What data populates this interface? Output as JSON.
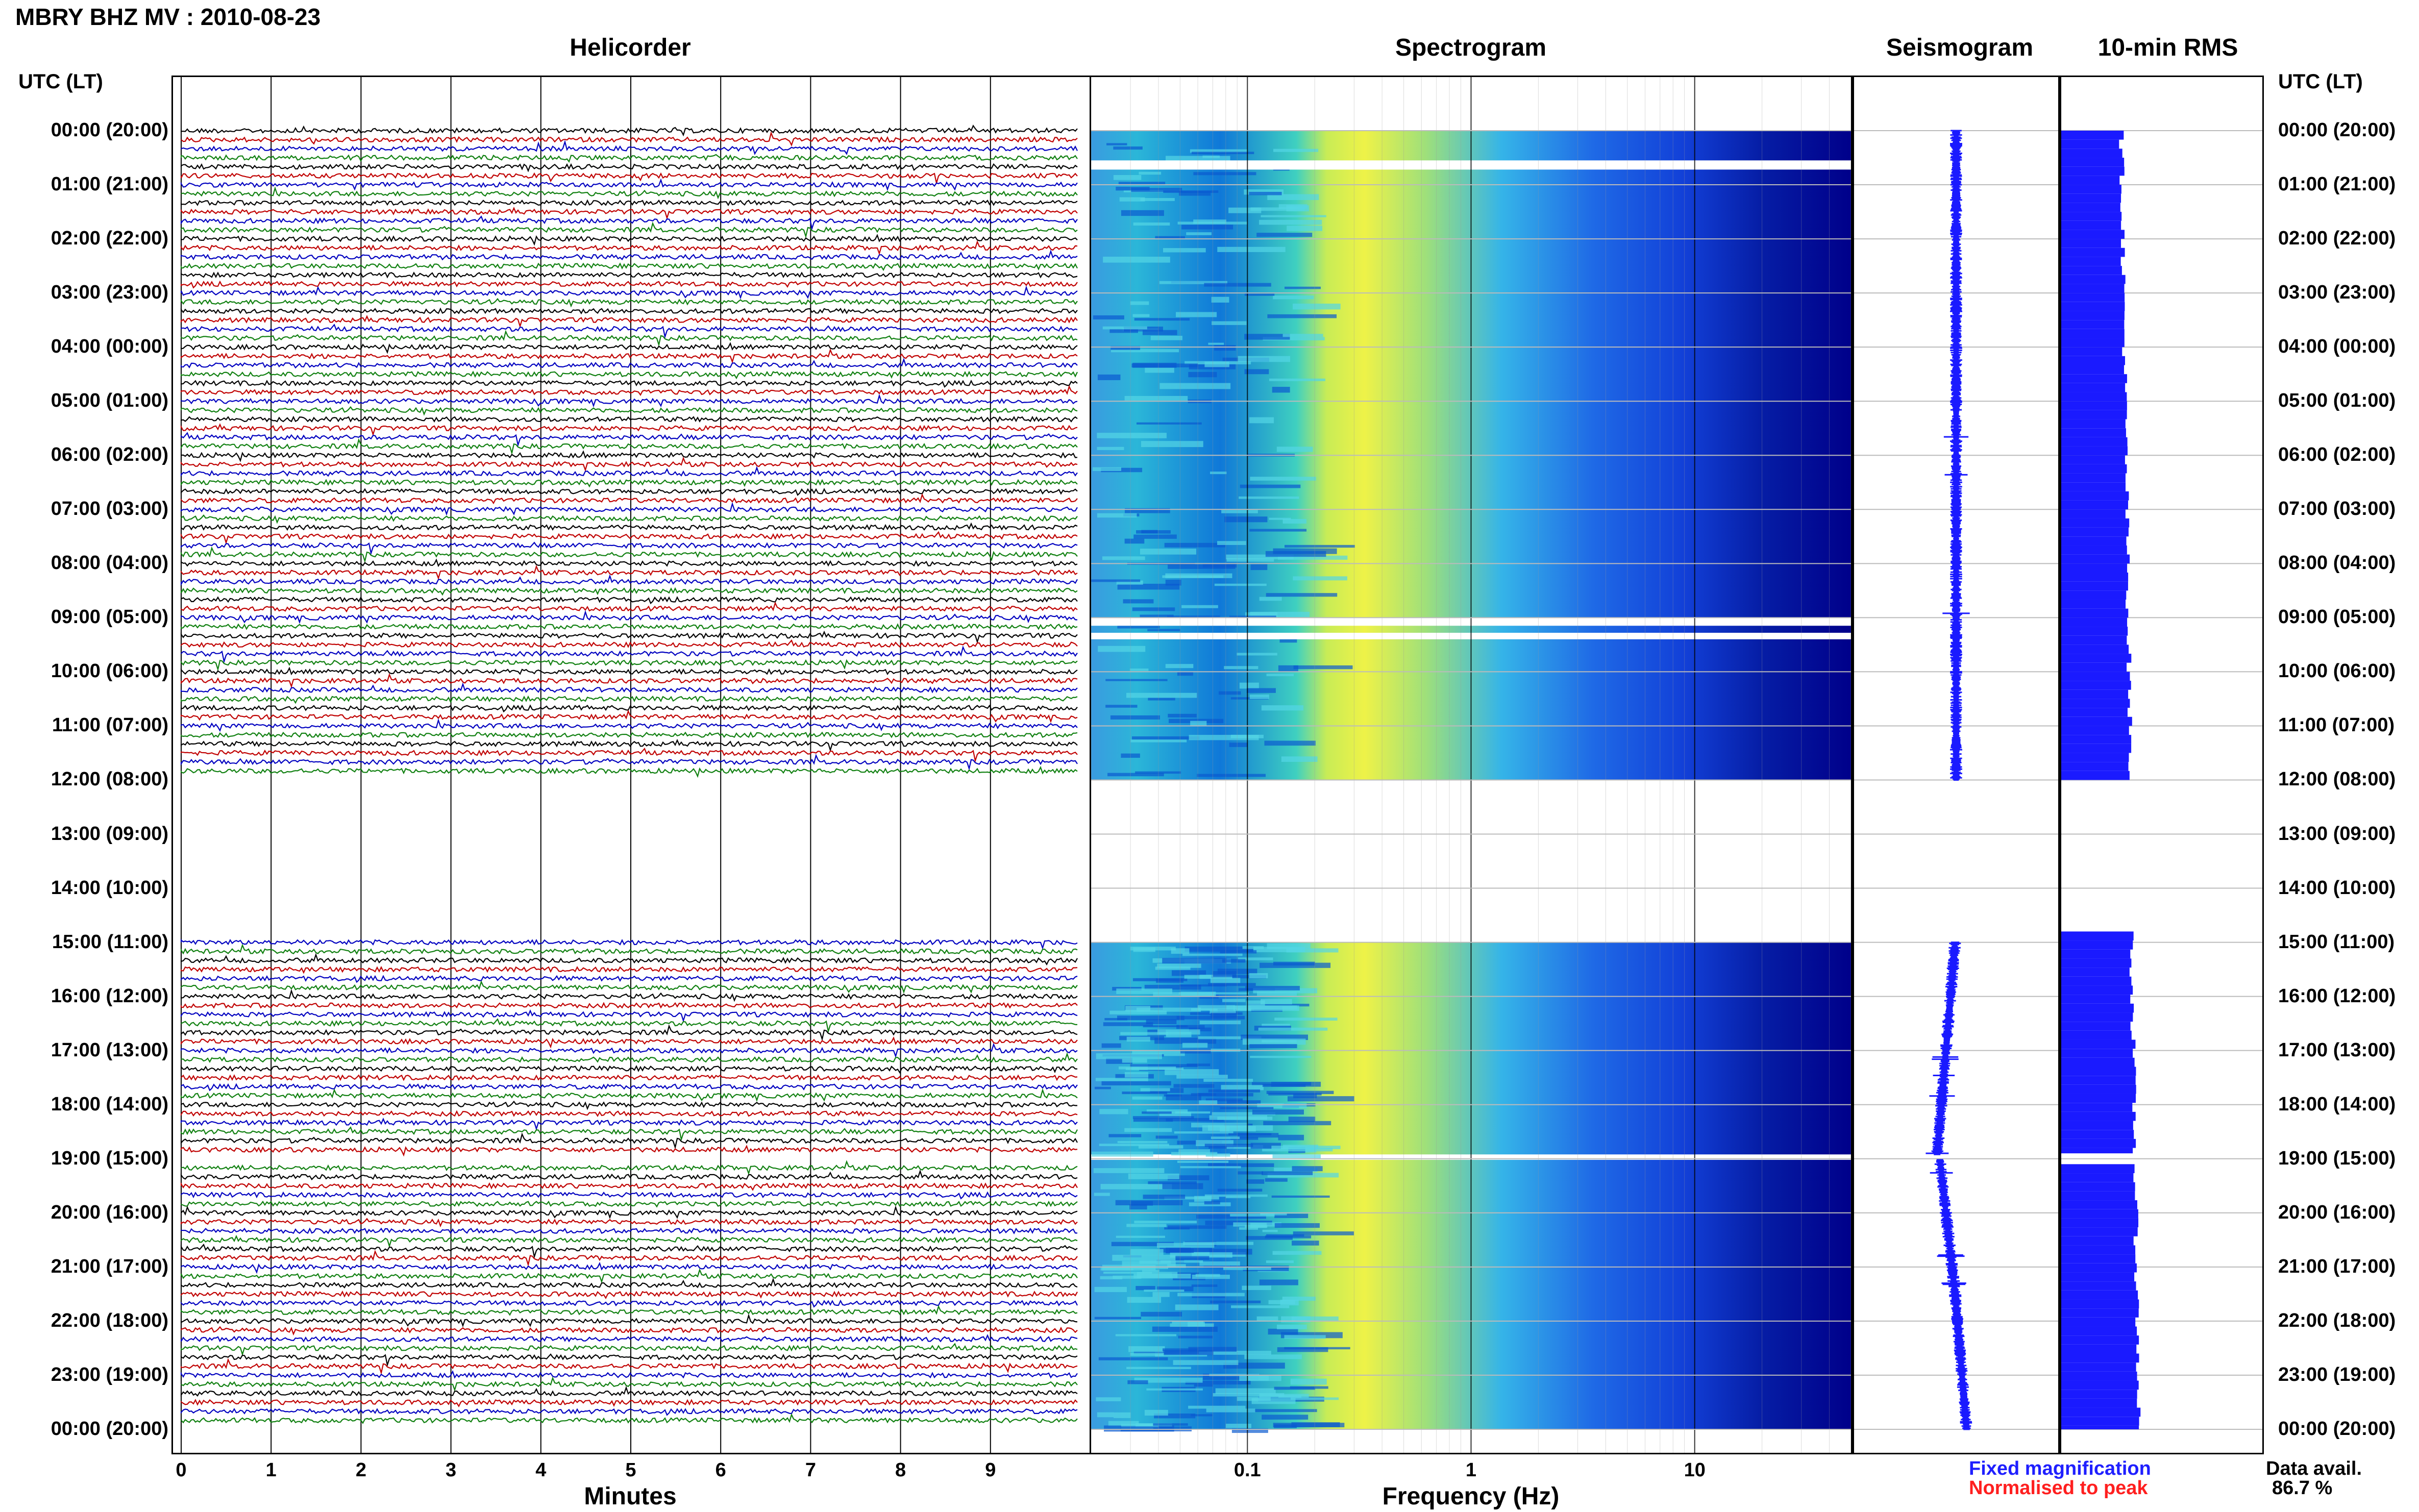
{
  "station_title": "MBRY BHZ MV : 2010-08-23",
  "panels": {
    "helicorder": "Helicorder",
    "spectrogram": "Spectrogram",
    "seismogram": "Seismogram",
    "rms": "10-min RMS"
  },
  "time_axis_header": "UTC (LT)",
  "time_labels": [
    "00:00 (20:00)",
    "01:00 (21:00)",
    "02:00 (22:00)",
    "03:00 (23:00)",
    "04:00 (00:00)",
    "05:00 (01:00)",
    "06:00 (02:00)",
    "07:00 (03:00)",
    "08:00 (04:00)",
    "09:00 (05:00)",
    "10:00 (06:00)",
    "11:00 (07:00)",
    "12:00 (08:00)",
    "13:00 (09:00)",
    "14:00 (10:00)",
    "15:00 (11:00)",
    "16:00 (12:00)",
    "17:00 (13:00)",
    "18:00 (14:00)",
    "19:00 (15:00)",
    "20:00 (16:00)",
    "21:00 (17:00)",
    "22:00 (18:00)",
    "23:00 (19:00)",
    "00:00 (20:00)"
  ],
  "x_axes": {
    "minutes": {
      "title": "Minutes",
      "ticks": [
        "0",
        "1",
        "2",
        "3",
        "4",
        "5",
        "6",
        "7",
        "8",
        "9"
      ]
    },
    "frequency": {
      "title": "Frequency (Hz)",
      "ticks": [
        "0.1",
        "1",
        "10"
      ]
    }
  },
  "legend": {
    "fixed": "Fixed magnification",
    "normalised": "Normalised to peak"
  },
  "data_availability": {
    "label": "Data avail.",
    "value": "86.7 %"
  },
  "colors": {
    "trace_cycle": [
      "#000000",
      "#c00000",
      "#0000c0",
      "#108010"
    ],
    "bars": "#1a1aff",
    "spectrogram_low": "#00008a",
    "spectrogram_high": "#f5f53a"
  },
  "chart_data": [
    {
      "type": "line",
      "title": "Helicorder",
      "xlabel": "Minutes",
      "x_range": [
        0,
        10
      ],
      "rows_per_hour": 6,
      "hours": 24,
      "data_gaps_utc": [
        [
          "12:00",
          "15:00"
        ],
        [
          "19:00",
          "19:00"
        ]
      ]
    },
    {
      "type": "heatmap",
      "title": "Spectrogram",
      "xlabel": "Frequency (Hz)",
      "x_scale": "log",
      "x_range": [
        0.02,
        50
      ],
      "peak_frequency_hz": 0.35,
      "data_gaps_utc": [
        [
          "12:00",
          "15:00"
        ],
        [
          "19:00",
          "19:00"
        ]
      ]
    },
    {
      "type": "line",
      "title": "Seismogram",
      "hours": 24
    },
    {
      "type": "bar",
      "title": "10-min RMS",
      "hours": 24,
      "data_gaps_utc": [
        [
          "12:00",
          "15:00"
        ],
        [
          "19:00",
          "19:00"
        ]
      ]
    }
  ]
}
